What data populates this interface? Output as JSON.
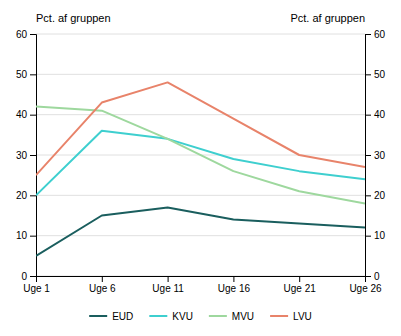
{
  "chart_data": {
    "type": "line",
    "ylabel": "Pct. af gruppen",
    "y2label": "Pct. af gruppen",
    "x": [
      1,
      6,
      11,
      16,
      21,
      26
    ],
    "xlim": [
      1,
      26
    ],
    "xticks": [
      {
        "value": 1,
        "label": "Uge 1"
      },
      {
        "value": 6,
        "label": "Uge 6"
      },
      {
        "value": 11,
        "label": "Uge 11"
      },
      {
        "value": 16,
        "label": "Uge 16"
      },
      {
        "value": 21,
        "label": "Uge 21"
      },
      {
        "value": 26,
        "label": "Uge 26"
      }
    ],
    "ylim": [
      0,
      60
    ],
    "yticks": [
      0,
      10,
      20,
      30,
      40,
      50,
      60
    ],
    "y2lim": [
      0,
      60
    ],
    "y2ticks": [
      0,
      10,
      20,
      30,
      40,
      50,
      60
    ],
    "grid": true,
    "legend": "bottom",
    "series": [
      {
        "name": "EUD",
        "color": "#1a5e5e",
        "values": [
          5,
          15,
          17,
          14,
          13,
          12
        ]
      },
      {
        "name": "KVU",
        "color": "#3ecfcf",
        "values": [
          20,
          36,
          34,
          29,
          26,
          24
        ]
      },
      {
        "name": "MVU",
        "color": "#9ed89e",
        "values": [
          42,
          41,
          34,
          26,
          21,
          18
        ]
      },
      {
        "name": "LVU",
        "color": "#e8836a",
        "values": [
          25,
          43,
          48,
          39,
          30,
          27
        ]
      }
    ]
  }
}
